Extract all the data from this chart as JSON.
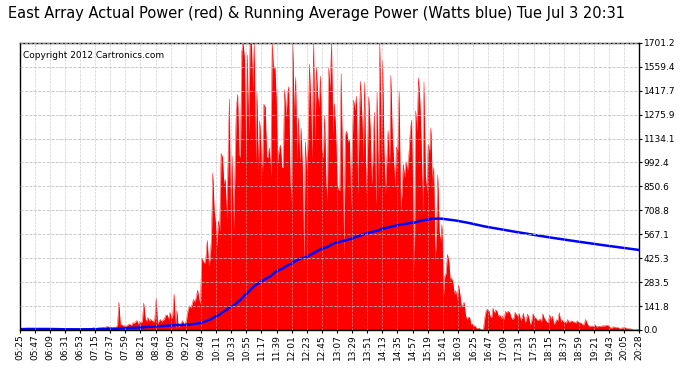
{
  "title": "East Array Actual Power (red) & Running Average Power (Watts blue) Tue Jul 3 20:31",
  "copyright": "Copyright 2012 Cartronics.com",
  "yticks": [
    0.0,
    141.8,
    283.5,
    425.3,
    567.1,
    708.8,
    850.6,
    992.4,
    1134.1,
    1275.9,
    1417.7,
    1559.4,
    1701.2
  ],
  "ymax": 1701.2,
  "ymin": 0.0,
  "background_color": "#ffffff",
  "grid_color": "#bbbbbb",
  "actual_color": "red",
  "avg_color": "blue",
  "title_fontsize": 10.5,
  "copyright_fontsize": 6.5,
  "tick_fontsize": 6.5,
  "x_labels": [
    "05:25",
    "05:47",
    "06:09",
    "06:31",
    "06:53",
    "07:15",
    "07:37",
    "07:59",
    "08:21",
    "08:43",
    "09:05",
    "09:27",
    "09:49",
    "10:11",
    "10:33",
    "10:55",
    "11:17",
    "11:39",
    "12:01",
    "12:23",
    "12:45",
    "13:07",
    "13:29",
    "13:51",
    "14:13",
    "14:35",
    "14:57",
    "15:19",
    "15:41",
    "16:03",
    "16:25",
    "16:47",
    "17:09",
    "17:31",
    "17:53",
    "18:15",
    "18:37",
    "18:59",
    "19:21",
    "19:43",
    "20:05",
    "20:28"
  ]
}
